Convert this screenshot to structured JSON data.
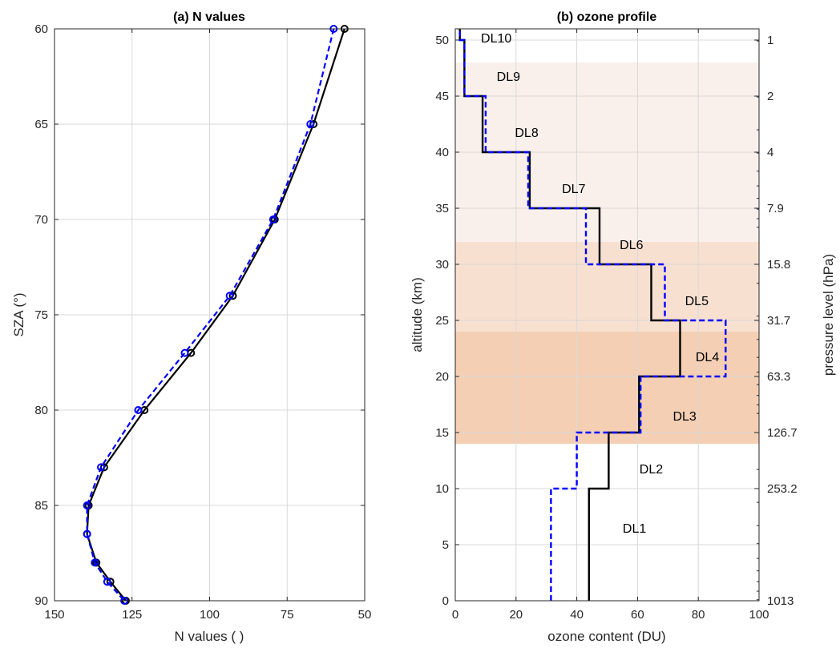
{
  "chart_data": [
    {
      "type": "line",
      "title": "(a) N values",
      "xlabel": "N values ( )",
      "ylabel": "SZA (°)",
      "xlim": [
        150,
        50
      ],
      "ylim": [
        90,
        60
      ],
      "x_reversed": true,
      "y_reversed": true,
      "grid": true,
      "xticks": [
        "150",
        "125",
        "100",
        "75",
        "50"
      ],
      "yticks": [
        "60",
        "65",
        "70",
        "75",
        "80",
        "85",
        "90"
      ],
      "series": [
        {
          "style": "solid black line with black circle markers",
          "color": "#000000",
          "points": [
            {
              "sza": 60,
              "n": 56.5
            },
            {
              "sza": 65,
              "n": 66.5
            },
            {
              "sza": 70,
              "n": 79
            },
            {
              "sza": 74,
              "n": 92.5
            },
            {
              "sza": 77,
              "n": 106
            },
            {
              "sza": 80,
              "n": 121
            },
            {
              "sza": 83,
              "n": 134
            },
            {
              "sza": 85,
              "n": 139
            },
            {
              "sza": 86.5,
              "n": 139.5
            },
            {
              "sza": 88,
              "n": 136.5
            },
            {
              "sza": 89,
              "n": 132
            },
            {
              "sza": 90,
              "n": 127
            }
          ]
        },
        {
          "style": "dashed blue line with blue circle markers",
          "color": "#0000ff",
          "points": [
            {
              "sza": 60,
              "n": 60
            },
            {
              "sza": 65,
              "n": 67.5
            },
            {
              "sza": 70,
              "n": 79.5
            },
            {
              "sza": 74,
              "n": 93.5
            },
            {
              "sza": 77,
              "n": 108
            },
            {
              "sza": 80,
              "n": 123
            },
            {
              "sza": 83,
              "n": 135
            },
            {
              "sza": 85,
              "n": 139.5
            },
            {
              "sza": 86.5,
              "n": 139.5
            },
            {
              "sza": 88,
              "n": 137
            },
            {
              "sza": 89,
              "n": 133
            },
            {
              "sza": 90,
              "n": 127.5
            }
          ]
        }
      ]
    },
    {
      "type": "line",
      "title": "(b) ozone profile",
      "xlabel": "ozone content (DU)",
      "ylabel": "altitude (km)",
      "y2label": "pressure level (hPa)",
      "xlim": [
        0,
        100
      ],
      "ylim": [
        0,
        51
      ],
      "grid": true,
      "xticks": [
        "0",
        "20",
        "40",
        "60",
        "80",
        "100"
      ],
      "yticks": [
        "0",
        "5",
        "10",
        "15",
        "20",
        "25",
        "30",
        "35",
        "40",
        "45",
        "50"
      ],
      "y2ticks": [
        {
          "label": "1013",
          "alt": 0
        },
        {
          "label": "253.2",
          "alt": 10
        },
        {
          "label": "126.7",
          "alt": 15
        },
        {
          "label": "63.3",
          "alt": 20
        },
        {
          "label": "31.7",
          "alt": 25
        },
        {
          "label": "15.8",
          "alt": 30
        },
        {
          "label": "7.9",
          "alt": 35
        },
        {
          "label": "4",
          "alt": 40
        },
        {
          "label": "2",
          "alt": 45
        },
        {
          "label": "1",
          "alt": 50
        }
      ],
      "bands": [
        {
          "alt_min": 14,
          "alt_max": 24,
          "color": "#f4cfb3"
        },
        {
          "alt_min": 24,
          "alt_max": 32,
          "color": "#f8e0d1"
        },
        {
          "alt_min": 32,
          "alt_max": 48,
          "color": "#f9f0eb"
        }
      ],
      "layers": [
        {
          "label": "DL1",
          "alt_min": 0,
          "alt_max": 10
        },
        {
          "label": "DL2",
          "alt_min": 10,
          "alt_max": 15
        },
        {
          "label": "DL3",
          "alt_min": 15,
          "alt_max": 20
        },
        {
          "label": "DL4",
          "alt_min": 20,
          "alt_max": 25
        },
        {
          "label": "DL5",
          "alt_min": 25,
          "alt_max": 30
        },
        {
          "label": "DL6",
          "alt_min": 30,
          "alt_max": 35
        },
        {
          "label": "DL7",
          "alt_min": 35,
          "alt_max": 40
        },
        {
          "label": "DL8",
          "alt_min": 40,
          "alt_max": 45
        },
        {
          "label": "DL9",
          "alt_min": 45,
          "alt_max": 50
        },
        {
          "label": "DL10",
          "alt_min": 50,
          "alt_max": 51
        }
      ],
      "series": [
        {
          "style": "solid black step profile",
          "color": "#000000",
          "values": [
            44,
            50.5,
            60.5,
            74,
            64.5,
            47.5,
            24.5,
            9,
            3,
            1.5
          ]
        },
        {
          "style": "dashed blue step profile",
          "color": "#0000ff",
          "values": [
            31.5,
            40,
            61,
            89,
            69,
            43,
            24,
            10,
            3,
            1.5
          ]
        }
      ]
    }
  ]
}
